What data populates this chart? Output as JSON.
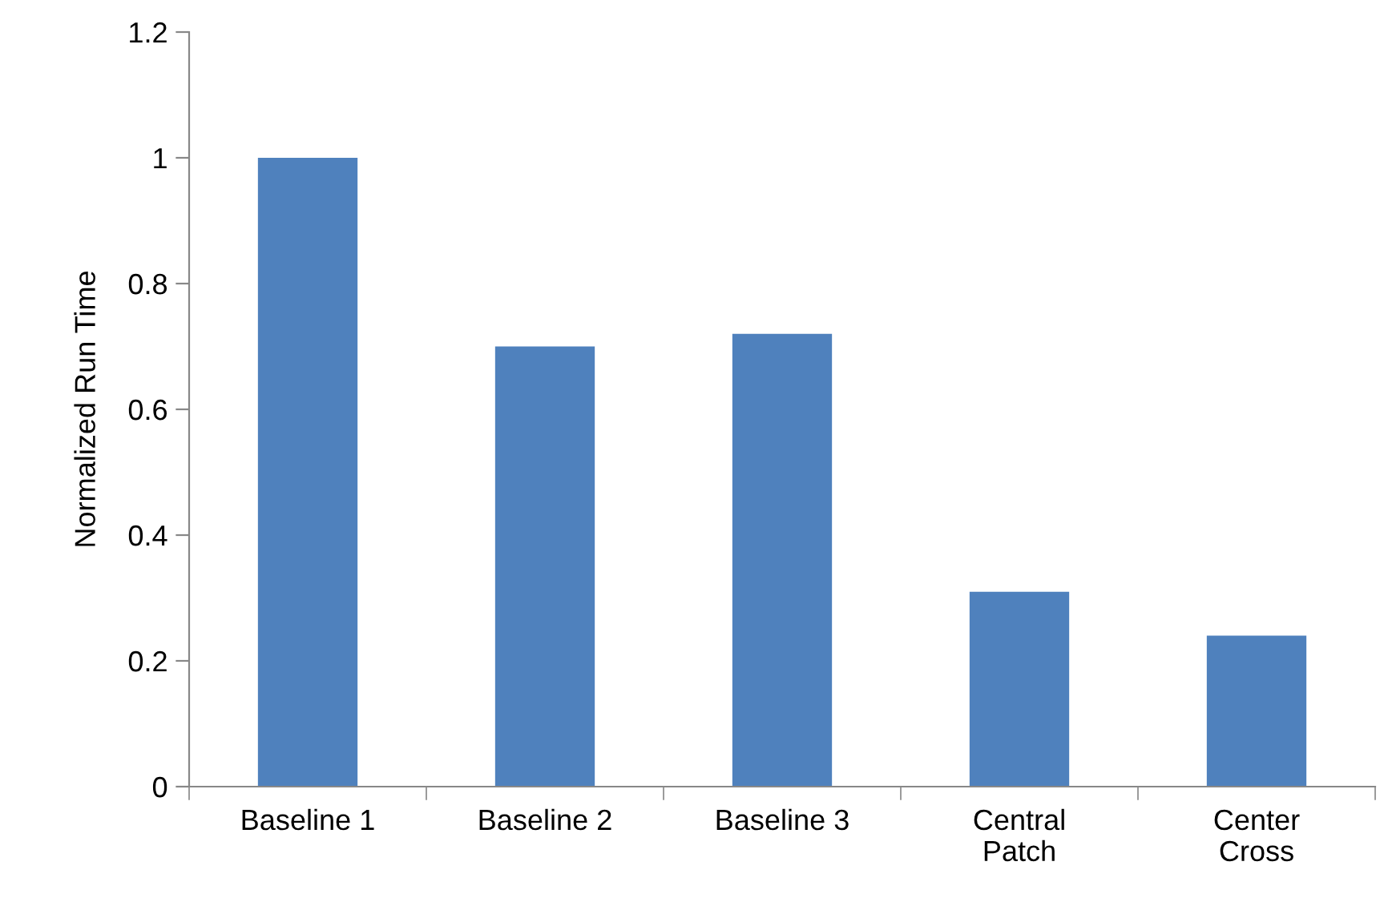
{
  "chart_data": {
    "type": "bar",
    "ylabel": "Normalized Run Time",
    "categories": [
      "Baseline 1",
      "Baseline 2",
      "Baseline 3",
      "Central\nPatch",
      "Center\nCross"
    ],
    "values": [
      1.0,
      0.7,
      0.72,
      0.31,
      0.24
    ],
    "color": "#4f81bd",
    "ylim": [
      0,
      1.2
    ],
    "yticks": [
      {
        "value": 0,
        "label": "0"
      },
      0.2,
      0.4,
      0.6,
      0.8,
      {
        "value": 1,
        "label": "1"
      },
      1.2
    ],
    "grid": false
  }
}
